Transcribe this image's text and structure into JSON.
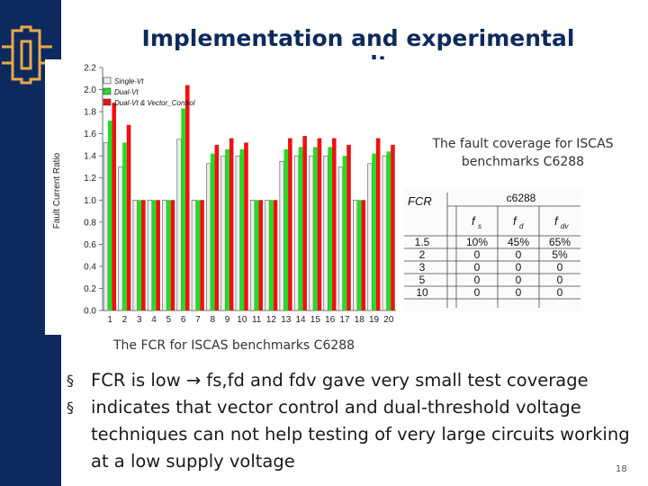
{
  "slide": {
    "title": "Implementation and experimental results",
    "number": "18",
    "colors": {
      "sidebar": "#0d2a5e",
      "title": "#0d2a5e",
      "logo_accent": "#e9a94b"
    }
  },
  "logo": {
    "icon": "circuit-logo-icon"
  },
  "fcr_chart": {
    "caption": "The FCR for ISCAS benchmarks C6288",
    "chart_data": {
      "type": "bar",
      "ylabel": "Fault Current Ratio",
      "xlabel": "",
      "ylim": [
        0,
        2.2
      ],
      "yticks": [
        "0.0",
        "0.2",
        "0.4",
        "0.6",
        "0.8",
        "1.0",
        "1.2",
        "1.4",
        "1.6",
        "1.8",
        "2.0",
        "2.2"
      ],
      "categories": [
        "1",
        "2",
        "3",
        "4",
        "5",
        "6",
        "7",
        "8",
        "9",
        "10",
        "11",
        "12",
        "13",
        "14",
        "15",
        "16",
        "17",
        "18",
        "19",
        "20"
      ],
      "series": [
        {
          "name": "Single-Vt",
          "color": "#ececec",
          "values": [
            1.52,
            1.3,
            1.0,
            1.0,
            1.0,
            1.55,
            1.0,
            1.33,
            1.4,
            1.4,
            1.0,
            1.0,
            1.35,
            1.4,
            1.4,
            1.4,
            1.3,
            1.0,
            1.33,
            1.4
          ]
        },
        {
          "name": "Dual-Vt",
          "color": "#22dd22",
          "values": [
            1.72,
            1.52,
            1.0,
            1.0,
            1.0,
            1.83,
            1.0,
            1.42,
            1.46,
            1.46,
            1.0,
            1.0,
            1.46,
            1.48,
            1.48,
            1.48,
            1.4,
            1.0,
            1.42,
            1.44
          ]
        },
        {
          "name": "Dual-Vt & Vector_Control",
          "color": "#ee1111",
          "values": [
            1.88,
            1.68,
            1.0,
            1.0,
            1.0,
            2.04,
            1.0,
            1.5,
            1.56,
            1.52,
            1.0,
            1.0,
            1.56,
            1.58,
            1.56,
            1.56,
            1.5,
            1.0,
            1.56,
            1.5
          ]
        }
      ]
    }
  },
  "coverage_table": {
    "caption_line1": "The fault coverage for ISCAS",
    "caption_line2": "benchmarks C6288",
    "corner_header": "FCR",
    "group_header": "c6288",
    "sub_headers": [
      "f",
      "f",
      "f"
    ],
    "sub_header_subscripts": [
      "s",
      "d",
      "dv"
    ],
    "rows": [
      [
        "1.5",
        "10%",
        "45%",
        "65%"
      ],
      [
        "2",
        "0",
        "0",
        "5%"
      ],
      [
        "3",
        "0",
        "0",
        "0"
      ],
      [
        "5",
        "0",
        "0",
        "0"
      ],
      [
        "10",
        "0",
        "0",
        "0"
      ]
    ]
  },
  "bullets": [
    "FCR is low → fs,fd and fdv gave very small test coverage",
    "indicates that vector control and dual-threshold voltage techniques can not help testing of very large circuits working at a low supply voltage"
  ],
  "bullet_icon": "square-bullet-icon",
  "bullet_glyph": "§"
}
